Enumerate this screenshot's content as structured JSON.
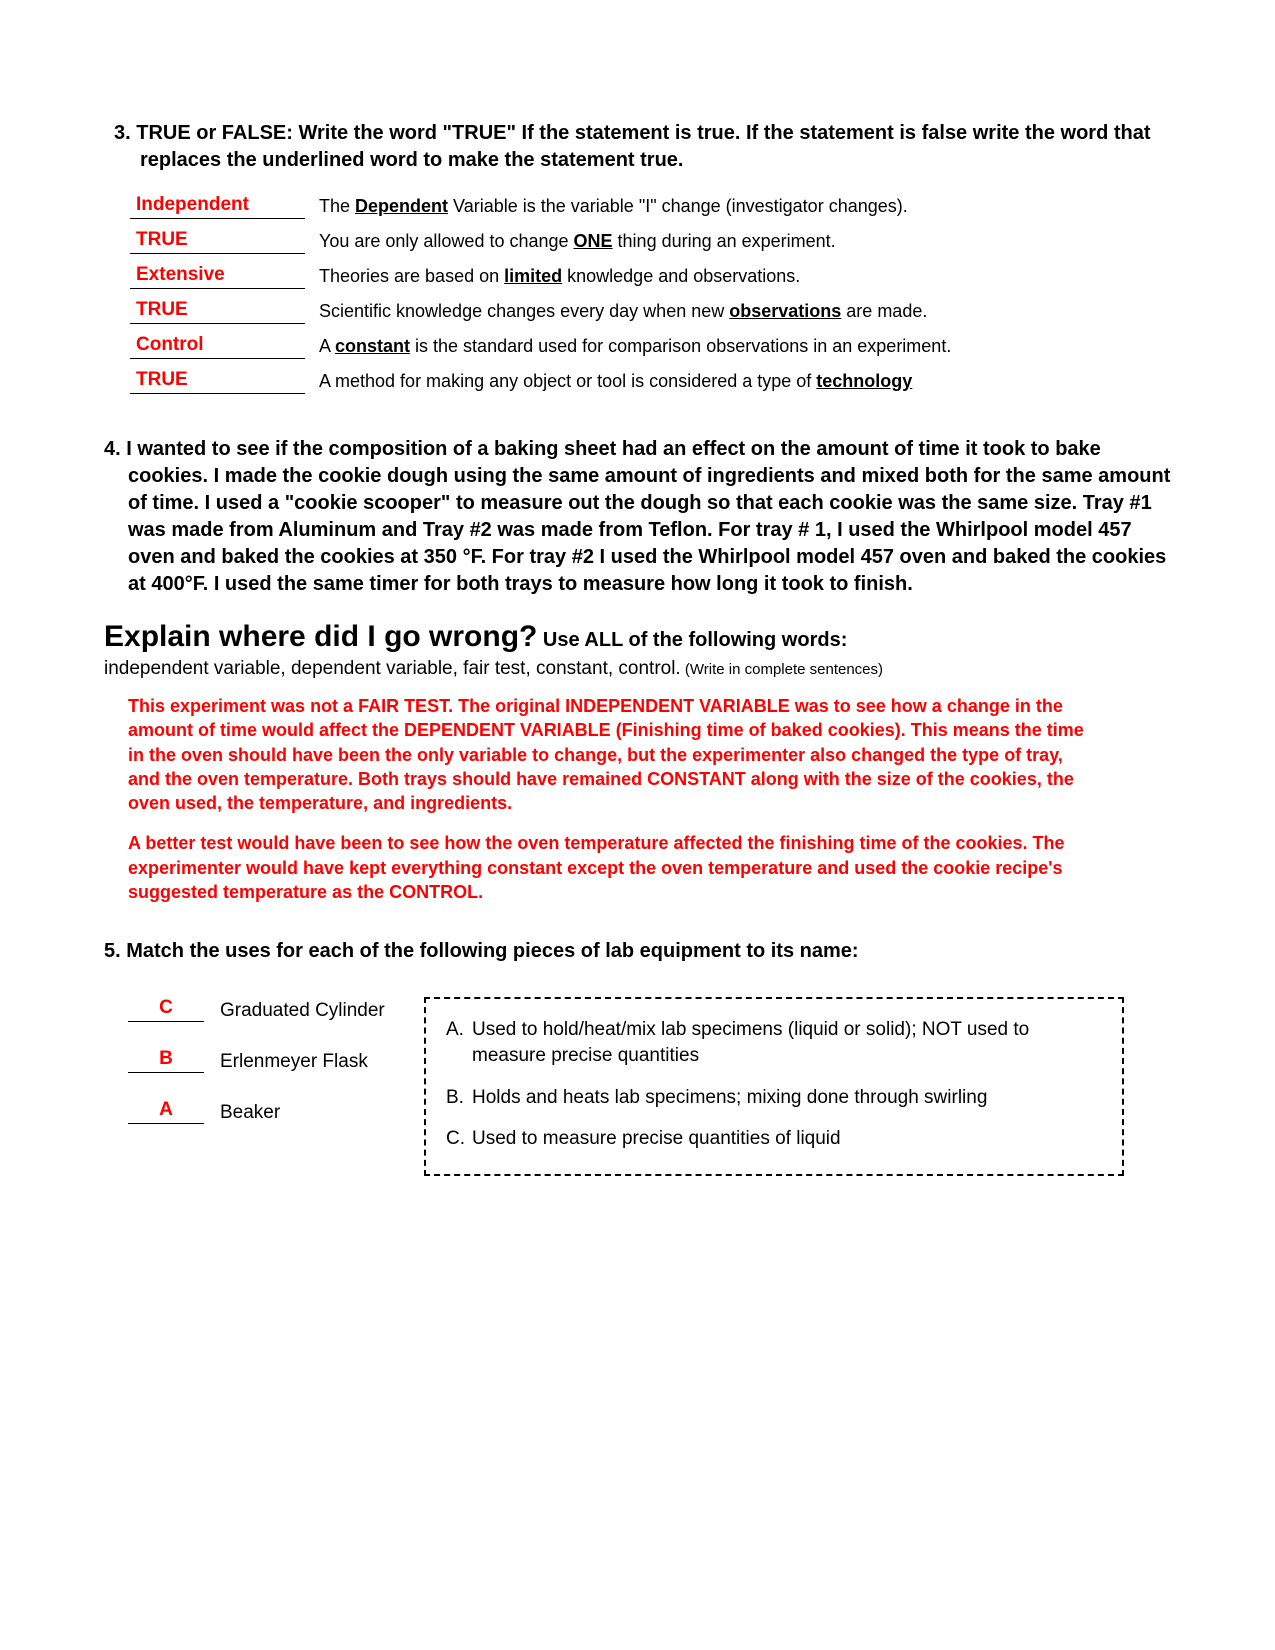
{
  "q3": {
    "instructions": "3.  TRUE or FALSE:  Write the word \"TRUE\" If the statement is true. If the statement is false write the word that replaces the underlined word to make the statement true.",
    "rows": [
      {
        "answer": "Independent",
        "pre": "The ",
        "underlined": "Dependent",
        "post": " Variable is the variable \"I\" change (investigator changes)."
      },
      {
        "answer": "TRUE",
        "pre": "You are only allowed to change ",
        "underlined": "ONE",
        "post": " thing during an experiment."
      },
      {
        "answer": "Extensive",
        "pre": "Theories are based on ",
        "underlined": "limited",
        "post": " knowledge and observations."
      },
      {
        "answer": "TRUE",
        "pre": "Scientific knowledge changes every day when new ",
        "underlined": "observations",
        "post": " are made."
      },
      {
        "answer": "Control",
        "pre": "A ",
        "underlined": "constant",
        "post": " is the standard used for comparison observations in an experiment."
      },
      {
        "answer": "TRUE",
        "pre": "A method for making any object or tool is considered a type of ",
        "underlined": "technology",
        "post": ""
      }
    ]
  },
  "q4": {
    "text": "4. I wanted to see if the composition of a baking sheet had an effect on the amount of time it took to bake cookies.  I made the cookie dough using the same amount of ingredients and mixed both for the same amount of time.  I used a \"cookie scooper\" to measure out the dough so that each cookie was the same size.  Tray #1 was made from Aluminum and Tray #2 was made from Teflon.  For tray # 1, I used the Whirlpool model 457 oven and baked the cookies at 350 °F.  For tray #2 I used the Whirlpool model 457 oven and baked the cookies at 400°F.  I used the same timer for both trays to measure how long it took to finish.",
    "explain_title": "Explain where did I go wrong?",
    "explain_sub": " Use ALL of the following words:",
    "explain_words": "independent variable, dependent variable, fair test, constant, control.",
    "write_complete": "  (Write in complete sentences)",
    "answer_p1": "This experiment was not a FAIR TEST. The original INDEPENDENT VARIABLE was to see how a change in the amount of time would affect the DEPENDENT VARIABLE (Finishing time of baked cookies). This means the time in the oven should have been the only variable to change, but the experimenter also changed the type of tray, and the oven temperature. Both trays should have remained CONSTANT along with the size of the cookies, the oven used, the temperature, and ingredients.",
    "answer_p2": "A better test would have been to see how the oven temperature affected the finishing time of the cookies. The experimenter would have kept everything constant except the oven temperature and used the cookie recipe's suggested temperature as the CONTROL."
  },
  "q5": {
    "text": "5.  Match the uses for each of the following pieces of lab equipment to its name:",
    "left": [
      {
        "answer": "C",
        "label": "Graduated Cylinder"
      },
      {
        "answer": "B",
        "label": "Erlenmeyer Flask"
      },
      {
        "answer": "A",
        "label": "Beaker"
      }
    ],
    "right": [
      {
        "letter": "A.",
        "text": "Used to hold/heat/mix lab specimens (liquid or solid); NOT used to measure precise quantities"
      },
      {
        "letter": "B.",
        "text": "Holds and heats lab specimens; mixing done through swirling"
      },
      {
        "letter": "C.",
        "text": "Used to measure precise quantities of liquid"
      }
    ]
  }
}
